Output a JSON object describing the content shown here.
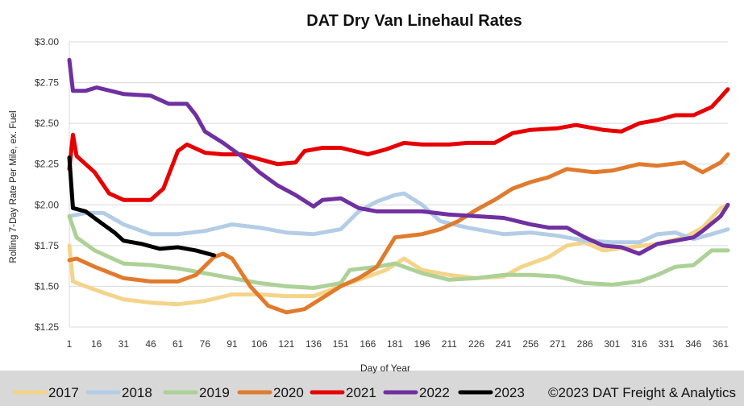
{
  "chart_data": {
    "type": "line",
    "title": "DAT Dry Van Linehaul Rates",
    "xlabel": "Day of Year",
    "ylabel": "Rolling 7-Day Rate Per Mile, ex. Fuel",
    "xlim": [
      1,
      365
    ],
    "ylim": [
      1.25,
      3.0
    ],
    "x_ticks": [
      1,
      16,
      31,
      46,
      61,
      76,
      91,
      106,
      121,
      136,
      151,
      166,
      181,
      196,
      211,
      226,
      241,
      256,
      271,
      286,
      301,
      316,
      331,
      346,
      361
    ],
    "y_ticks": [
      1.25,
      1.5,
      1.75,
      2.0,
      2.25,
      2.5,
      2.75,
      3.0
    ],
    "y_tick_labels": [
      "$1.25",
      "$1.50",
      "$1.75",
      "$2.00",
      "$2.25",
      "$2.50",
      "$2.75",
      "$3.00"
    ],
    "grid": true,
    "legend_position": "bottom",
    "copyright": "©2023 DAT Freight & Analytics",
    "series": [
      {
        "name": "2017",
        "color": "#f4d48a",
        "points": [
          [
            1,
            1.75
          ],
          [
            3,
            1.53
          ],
          [
            10,
            1.5
          ],
          [
            20,
            1.46
          ],
          [
            31,
            1.42
          ],
          [
            46,
            1.4
          ],
          [
            61,
            1.39
          ],
          [
            76,
            1.41
          ],
          [
            91,
            1.45
          ],
          [
            106,
            1.45
          ],
          [
            121,
            1.44
          ],
          [
            136,
            1.44
          ],
          [
            151,
            1.5
          ],
          [
            166,
            1.56
          ],
          [
            176,
            1.6
          ],
          [
            186,
            1.67
          ],
          [
            196,
            1.6
          ],
          [
            211,
            1.57
          ],
          [
            226,
            1.55
          ],
          [
            241,
            1.56
          ],
          [
            251,
            1.62
          ],
          [
            266,
            1.68
          ],
          [
            276,
            1.75
          ],
          [
            286,
            1.77
          ],
          [
            296,
            1.72
          ],
          [
            311,
            1.74
          ],
          [
            326,
            1.76
          ],
          [
            341,
            1.8
          ],
          [
            351,
            1.86
          ],
          [
            361,
            1.98
          ],
          [
            365,
            2.0
          ]
        ]
      },
      {
        "name": "2018",
        "color": "#b4cde6",
        "points": [
          [
            1,
            1.93
          ],
          [
            10,
            1.95
          ],
          [
            20,
            1.95
          ],
          [
            31,
            1.88
          ],
          [
            46,
            1.82
          ],
          [
            61,
            1.82
          ],
          [
            76,
            1.84
          ],
          [
            91,
            1.88
          ],
          [
            106,
            1.86
          ],
          [
            121,
            1.83
          ],
          [
            136,
            1.82
          ],
          [
            151,
            1.85
          ],
          [
            161,
            1.96
          ],
          [
            171,
            2.02
          ],
          [
            181,
            2.06
          ],
          [
            186,
            2.07
          ],
          [
            196,
            2.0
          ],
          [
            206,
            1.9
          ],
          [
            221,
            1.86
          ],
          [
            241,
            1.82
          ],
          [
            256,
            1.83
          ],
          [
            271,
            1.81
          ],
          [
            286,
            1.78
          ],
          [
            301,
            1.77
          ],
          [
            316,
            1.77
          ],
          [
            326,
            1.82
          ],
          [
            336,
            1.83
          ],
          [
            346,
            1.79
          ],
          [
            356,
            1.82
          ],
          [
            365,
            1.85
          ]
        ]
      },
      {
        "name": "2019",
        "color": "#acd197",
        "points": [
          [
            1,
            1.93
          ],
          [
            5,
            1.8
          ],
          [
            15,
            1.72
          ],
          [
            31,
            1.64
          ],
          [
            46,
            1.63
          ],
          [
            61,
            1.61
          ],
          [
            76,
            1.58
          ],
          [
            91,
            1.55
          ],
          [
            106,
            1.52
          ],
          [
            121,
            1.5
          ],
          [
            136,
            1.49
          ],
          [
            151,
            1.52
          ],
          [
            156,
            1.6
          ],
          [
            171,
            1.62
          ],
          [
            181,
            1.64
          ],
          [
            196,
            1.58
          ],
          [
            211,
            1.54
          ],
          [
            226,
            1.55
          ],
          [
            241,
            1.57
          ],
          [
            256,
            1.57
          ],
          [
            271,
            1.56
          ],
          [
            286,
            1.52
          ],
          [
            301,
            1.51
          ],
          [
            316,
            1.53
          ],
          [
            326,
            1.57
          ],
          [
            336,
            1.62
          ],
          [
            346,
            1.63
          ],
          [
            356,
            1.72
          ],
          [
            365,
            1.72
          ]
        ]
      },
      {
        "name": "2020",
        "color": "#e07b2e",
        "points": [
          [
            1,
            1.66
          ],
          [
            5,
            1.67
          ],
          [
            15,
            1.62
          ],
          [
            31,
            1.55
          ],
          [
            46,
            1.53
          ],
          [
            61,
            1.53
          ],
          [
            71,
            1.57
          ],
          [
            81,
            1.68
          ],
          [
            86,
            1.7
          ],
          [
            91,
            1.67
          ],
          [
            101,
            1.5
          ],
          [
            111,
            1.38
          ],
          [
            121,
            1.34
          ],
          [
            131,
            1.36
          ],
          [
            141,
            1.43
          ],
          [
            151,
            1.5
          ],
          [
            161,
            1.55
          ],
          [
            171,
            1.62
          ],
          [
            181,
            1.8
          ],
          [
            196,
            1.82
          ],
          [
            206,
            1.85
          ],
          [
            216,
            1.9
          ],
          [
            226,
            1.97
          ],
          [
            236,
            2.03
          ],
          [
            246,
            2.1
          ],
          [
            256,
            2.14
          ],
          [
            266,
            2.17
          ],
          [
            276,
            2.22
          ],
          [
            291,
            2.2
          ],
          [
            301,
            2.21
          ],
          [
            316,
            2.25
          ],
          [
            326,
            2.24
          ],
          [
            341,
            2.26
          ],
          [
            351,
            2.2
          ],
          [
            361,
            2.26
          ],
          [
            365,
            2.31
          ]
        ]
      },
      {
        "name": "2021",
        "color": "#e60000",
        "points": [
          [
            1,
            2.22
          ],
          [
            3,
            2.43
          ],
          [
            5,
            2.3
          ],
          [
            15,
            2.2
          ],
          [
            23,
            2.07
          ],
          [
            31,
            2.03
          ],
          [
            46,
            2.03
          ],
          [
            53,
            2.1
          ],
          [
            61,
            2.33
          ],
          [
            66,
            2.37
          ],
          [
            76,
            2.32
          ],
          [
            86,
            2.31
          ],
          [
            96,
            2.31
          ],
          [
            106,
            2.28
          ],
          [
            116,
            2.25
          ],
          [
            126,
            2.26
          ],
          [
            131,
            2.33
          ],
          [
            141,
            2.35
          ],
          [
            151,
            2.35
          ],
          [
            166,
            2.31
          ],
          [
            176,
            2.34
          ],
          [
            186,
            2.38
          ],
          [
            196,
            2.37
          ],
          [
            211,
            2.37
          ],
          [
            221,
            2.38
          ],
          [
            236,
            2.38
          ],
          [
            246,
            2.44
          ],
          [
            256,
            2.46
          ],
          [
            271,
            2.47
          ],
          [
            281,
            2.49
          ],
          [
            296,
            2.46
          ],
          [
            306,
            2.45
          ],
          [
            316,
            2.5
          ],
          [
            326,
            2.52
          ],
          [
            336,
            2.55
          ],
          [
            346,
            2.55
          ],
          [
            356,
            2.6
          ],
          [
            361,
            2.66
          ],
          [
            365,
            2.71
          ]
        ]
      },
      {
        "name": "2022",
        "color": "#7030a0",
        "points": [
          [
            1,
            2.89
          ],
          [
            3,
            2.7
          ],
          [
            10,
            2.7
          ],
          [
            16,
            2.72
          ],
          [
            31,
            2.68
          ],
          [
            46,
            2.67
          ],
          [
            56,
            2.62
          ],
          [
            66,
            2.62
          ],
          [
            71,
            2.55
          ],
          [
            76,
            2.45
          ],
          [
            86,
            2.38
          ],
          [
            96,
            2.3
          ],
          [
            106,
            2.2
          ],
          [
            116,
            2.12
          ],
          [
            126,
            2.06
          ],
          [
            136,
            1.99
          ],
          [
            141,
            2.03
          ],
          [
            151,
            2.04
          ],
          [
            161,
            1.98
          ],
          [
            171,
            1.96
          ],
          [
            181,
            1.96
          ],
          [
            196,
            1.96
          ],
          [
            211,
            1.94
          ],
          [
            226,
            1.93
          ],
          [
            241,
            1.92
          ],
          [
            256,
            1.88
          ],
          [
            266,
            1.86
          ],
          [
            276,
            1.86
          ],
          [
            286,
            1.8
          ],
          [
            296,
            1.75
          ],
          [
            306,
            1.74
          ],
          [
            316,
            1.7
          ],
          [
            326,
            1.76
          ],
          [
            336,
            1.78
          ],
          [
            346,
            1.8
          ],
          [
            351,
            1.84
          ],
          [
            361,
            1.93
          ],
          [
            365,
            2.0
          ]
        ]
      },
      {
        "name": "2023",
        "color": "#000000",
        "points": [
          [
            1,
            2.29
          ],
          [
            3,
            1.98
          ],
          [
            10,
            1.96
          ],
          [
            16,
            1.91
          ],
          [
            26,
            1.83
          ],
          [
            31,
            1.78
          ],
          [
            41,
            1.76
          ],
          [
            51,
            1.73
          ],
          [
            61,
            1.74
          ],
          [
            71,
            1.72
          ],
          [
            81,
            1.69
          ]
        ]
      }
    ]
  }
}
